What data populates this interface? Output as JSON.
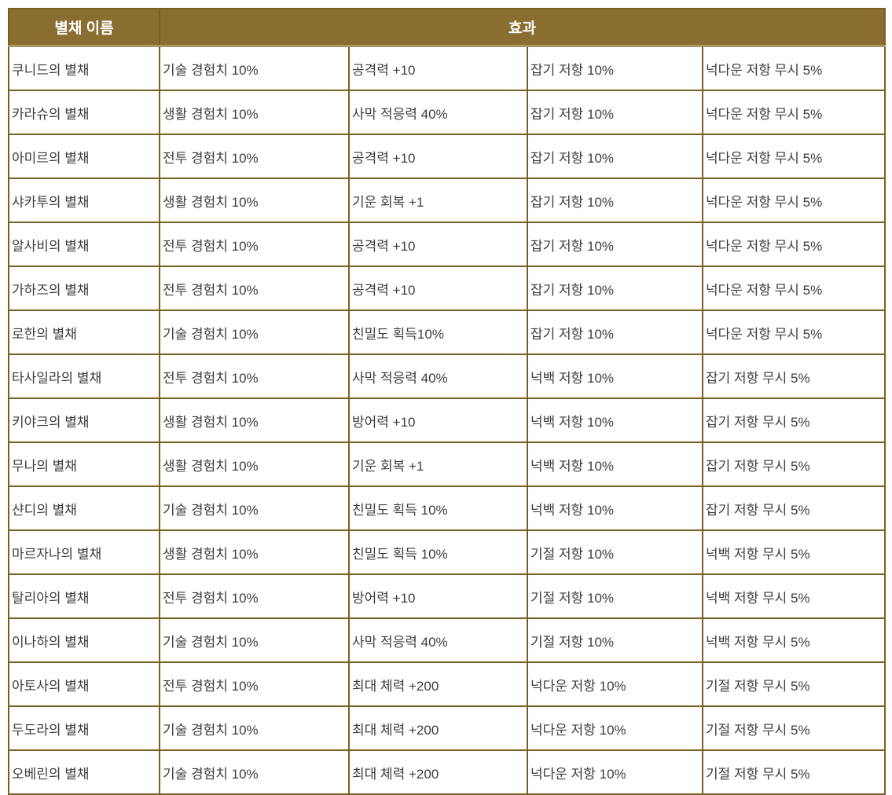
{
  "table": {
    "headers": {
      "name": "별채 이름",
      "effect": "효과"
    },
    "colors": {
      "header_background": "#8a6d31",
      "header_text": "#ffffff",
      "header_bottom_highlight": "#ab9764",
      "grid_border": "#7a5f23",
      "outer_border": "#1f1b12",
      "cell_text": "#3d3d3d",
      "row_background": "#ffffff"
    },
    "rows": [
      {
        "name": "쿠니드의 별채",
        "effects": [
          "기술 경험치 10%",
          "공격력 +10",
          "잡기 저항 10%",
          "넉다운 저항 무시 5%"
        ]
      },
      {
        "name": "카라슈의 별채",
        "effects": [
          "생활 경험치 10%",
          "사막 적응력 40%",
          "잡기 저항 10%",
          "넉다운 저항 무시 5%"
        ]
      },
      {
        "name": "아미르의 별채",
        "effects": [
          "전투 경험치 10%",
          "공격력 +10",
          "잡기 저항 10%",
          "넉다운 저항 무시 5%"
        ]
      },
      {
        "name": "샤카투의 별채",
        "effects": [
          "생활 경험치 10%",
          "기운 회복 +1",
          "잡기 저항 10%",
          "넉다운 저항 무시 5%"
        ]
      },
      {
        "name": "알사비의 별채",
        "effects": [
          "전투 경험치 10%",
          "공격력 +10",
          "잡기 저항 10%",
          "넉다운 저항 무시 5%"
        ]
      },
      {
        "name": "가하즈의 별채",
        "effects": [
          "전투 경험치 10%",
          "공격력 +10",
          "잡기 저항 10%",
          "넉다운 저항 무시 5%"
        ]
      },
      {
        "name": "로한의 별채",
        "effects": [
          "기술 경험치 10%",
          "친밀도 획득10%",
          "잡기 저항 10%",
          "넉다운 저항 무시 5%"
        ]
      },
      {
        "name": "타사일라의 별채",
        "effects": [
          "전투 경험치 10%",
          "사막 적응력 40%",
          "넉백 저항 10%",
          "잡기 저항 무시 5%"
        ]
      },
      {
        "name": "키야크의 별채",
        "effects": [
          "생활 경험치 10%",
          "방어력 +10",
          "넉백 저항 10%",
          "잡기 저항 무시 5%"
        ]
      },
      {
        "name": "무나의 별채",
        "effects": [
          "생활 경험치 10%",
          "기운 회복 +1",
          "넉백 저항 10%",
          "잡기 저항 무시 5%"
        ]
      },
      {
        "name": "샨디의 별채",
        "effects": [
          "기술 경험치 10%",
          "친밀도 획득 10%",
          "넉백 저항 10%",
          "잡기 저항 무시 5%"
        ]
      },
      {
        "name": "마르자나의 별채",
        "effects": [
          "생활 경험치 10%",
          "친밀도 획득 10%",
          "기절 저항 10%",
          "넉백 저항 무시 5%"
        ]
      },
      {
        "name": "탈리아의 별채",
        "effects": [
          "전투 경험치 10%",
          "방어력 +10",
          "기절 저항 10%",
          "넉백 저항 무시 5%"
        ]
      },
      {
        "name": "이나하의 별채",
        "effects": [
          "기술 경험치 10%",
          "사막 적응력 40%",
          "기절 저항 10%",
          "넉백 저항 무시 5%"
        ]
      },
      {
        "name": "아토사의 별채",
        "effects": [
          "전투 경험치 10%",
          "최대 체력 +200",
          "넉다운 저항 10%",
          "기절 저항 무시 5%"
        ]
      },
      {
        "name": "두도라의 별채",
        "effects": [
          "기술 경험치 10%",
          "최대 체력 +200",
          "넉다운 저항 10%",
          "기절 저항 무시 5%"
        ]
      },
      {
        "name": "오베린의 별채",
        "effects": [
          "기술 경험치 10%",
          "최대 체력 +200",
          "넉다운 저항 10%",
          "기절 저항 무시 5%"
        ]
      }
    ]
  }
}
